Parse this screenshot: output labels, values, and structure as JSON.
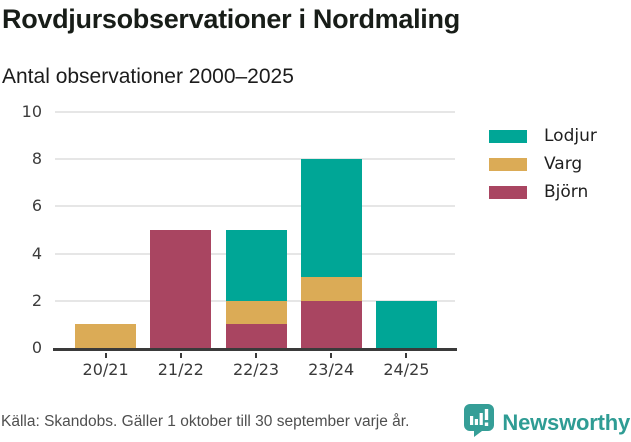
{
  "header": {
    "title": "Rovdjursobservationer i Nordmaling",
    "subtitle": "Antal observationer 2000–2025"
  },
  "footer": {
    "source": "Källa: Skandobs. Gäller 1 oktober till 30 september varje år.",
    "brand": "Newsworthy",
    "brand_color": "#2F9C94"
  },
  "chart_data": {
    "type": "bar",
    "stacked": true,
    "title": "Rovdjursobservationer i Nordmaling",
    "subtitle": "Antal observationer 2000–2025",
    "categories": [
      "20/21",
      "21/22",
      "22/23",
      "23/24",
      "24/25"
    ],
    "series": [
      {
        "name": "Lodjur",
        "color": "#00A696",
        "values": [
          0,
          0,
          3,
          5,
          2
        ]
      },
      {
        "name": "Varg",
        "color": "#DBAB56",
        "values": [
          1,
          0,
          1,
          1,
          0
        ]
      },
      {
        "name": "Björn",
        "color": "#A94561",
        "values": [
          0,
          5,
          1,
          2,
          0
        ]
      }
    ],
    "stack_order_bottom_to_top": [
      "Björn",
      "Varg",
      "Lodjur"
    ],
    "xlabel": "",
    "ylabel": "",
    "ylim": [
      0,
      10
    ],
    "yticks": [
      0,
      2,
      4,
      6,
      8,
      10
    ],
    "grid": true,
    "legend_position": "right"
  }
}
